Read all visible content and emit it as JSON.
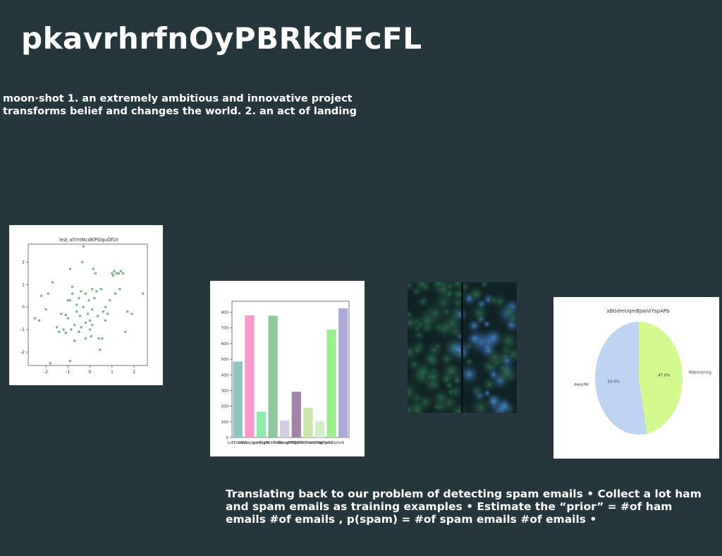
{
  "slide": {
    "title": "pkavrhrfnOyPBRkdFcFL",
    "subtitle": "moon·shot 1. an extremely ambitious and innovative project transforms belief and changes the world. 2. an act of landing",
    "body_text": "Translating back to our problem of detecting spam emails • Collect a lot ham and spam emails as training examples • Estimate the “prior” = #of ham emails #of emails , p(spam) = #of spam emails #of emails •",
    "background_color": "#25363c"
  },
  "chart_data": [
    {
      "type": "scatter",
      "title": "lezj alYmNcdKPGquOfUr",
      "xlabel": "",
      "ylabel": "",
      "xlim": [
        -2.8,
        2.6
      ],
      "ylim": [
        -2.6,
        2.8
      ],
      "xticks": [
        -2,
        -1,
        0,
        1,
        2
      ],
      "yticks": [
        -2,
        -1,
        0,
        1,
        2
      ],
      "color": "#5a9f6e",
      "points": [
        [
          -2.5,
          -0.5
        ],
        [
          -2.3,
          -0.6
        ],
        [
          -2.2,
          0.5
        ],
        [
          -1.9,
          0.6
        ],
        [
          -1.8,
          -2.5
        ],
        [
          -1.7,
          1.1
        ],
        [
          -1.5,
          -0.9
        ],
        [
          -1.4,
          -1.1
        ],
        [
          -1.3,
          -0.3
        ],
        [
          -1.2,
          -1.0
        ],
        [
          -1.1,
          -1.15
        ],
        [
          -1.0,
          0.3
        ],
        [
          -1.0,
          -0.5
        ],
        [
          -0.9,
          1.7
        ],
        [
          -0.9,
          -2.4
        ],
        [
          -0.85,
          -1.0
        ],
        [
          -0.8,
          0.9
        ],
        [
          -0.8,
          0.6
        ],
        [
          -0.7,
          -0.8
        ],
        [
          -0.7,
          -1.5
        ],
        [
          -0.6,
          0.1
        ],
        [
          -0.6,
          -0.2
        ],
        [
          -0.5,
          0.4
        ],
        [
          -0.5,
          -1.1
        ],
        [
          -0.45,
          -0.4
        ],
        [
          -0.4,
          0.7
        ],
        [
          -0.4,
          -0.9
        ],
        [
          -0.35,
          2.0
        ],
        [
          -0.3,
          0.0
        ],
        [
          -0.2,
          0.6
        ],
        [
          -0.2,
          -0.7
        ],
        [
          -0.1,
          -0.3
        ],
        [
          -0.05,
          0.3
        ],
        [
          0.0,
          -1.0
        ],
        [
          0.0,
          -0.6
        ],
        [
          0.1,
          0.8
        ],
        [
          0.1,
          -0.1
        ],
        [
          0.15,
          1.7
        ],
        [
          0.2,
          0.4
        ],
        [
          0.25,
          1.5
        ],
        [
          0.3,
          0.7
        ],
        [
          0.35,
          -0.4
        ],
        [
          0.4,
          -1.4
        ],
        [
          0.45,
          -1.9
        ],
        [
          0.5,
          0.8
        ],
        [
          0.6,
          -0.2
        ],
        [
          0.7,
          0.0
        ],
        [
          0.8,
          -0.3
        ],
        [
          0.9,
          0.3
        ],
        [
          1.0,
          1.5
        ],
        [
          1.05,
          1.4
        ],
        [
          1.1,
          1.6
        ],
        [
          1.15,
          0.6
        ],
        [
          1.2,
          1.5
        ],
        [
          1.3,
          1.5
        ],
        [
          1.35,
          0.8
        ],
        [
          1.4,
          1.6
        ],
        [
          1.5,
          1.5
        ],
        [
          1.6,
          -1.1
        ],
        [
          1.7,
          -0.2
        ],
        [
          1.9,
          -0.3
        ],
        [
          0.05,
          -1.3
        ],
        [
          -1.1,
          -0.35
        ],
        [
          0.7,
          -0.6
        ],
        [
          -0.2,
          -1.4
        ],
        [
          0.1,
          -0.8
        ],
        [
          -0.9,
          0.3
        ],
        [
          -2.0,
          -0.1
        ],
        [
          2.4,
          0.6
        ],
        [
          -0.3,
          2.7
        ],
        [
          0.55,
          -1.4
        ]
      ]
    },
    {
      "type": "bar",
      "title": "",
      "categories": [
        "LvEEdhnljfp",
        "pNUrqcJqrxn",
        "jvmFxjjhk",
        "jhyWUkYsBqm",
        "ScoBzoghNEl",
        "qFlPgzJFRlk",
        "DHbcDHatdHm",
        "hxUUl hnHpSS",
        "tjJCgmDkyhuN",
        ""
      ],
      "values": [
        485,
        780,
        165,
        778,
        108,
        292,
        190,
        103,
        690,
        825
      ],
      "colors": [
        "#8ec6c0",
        "#fe99cf",
        "#8eeaac",
        "#8fc69c",
        "#d4cde2",
        "#a184a8",
        "#cce6aa",
        "#d0f0c8",
        "#9bed8d",
        "#aba9d6"
      ],
      "ylim": [
        0,
        870
      ],
      "yticks": [
        0,
        100,
        200,
        300,
        400,
        500,
        600,
        700,
        800
      ]
    },
    {
      "type": "pie",
      "title": "xBGdmUqmBJasViYspAPb",
      "labels": [
        "RVJmhJmVg",
        "dwqUNI"
      ],
      "values": [
        47.0,
        53.0
      ],
      "pct_labels": [
        "47.0%",
        "53.0%"
      ],
      "colors": [
        "#d4f98f",
        "#bfd4f2"
      ]
    }
  ]
}
